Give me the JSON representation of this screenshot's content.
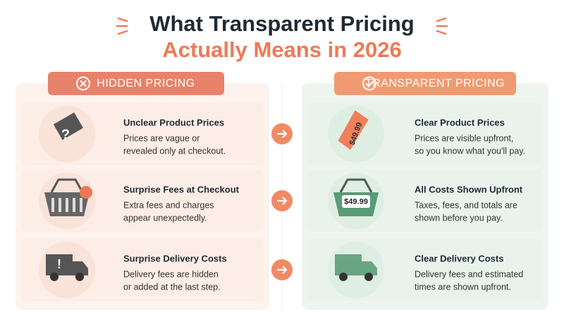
{
  "header": {
    "title_line1": "What Transparent Pricing",
    "title_line2": "Actually Means in 2026"
  },
  "columns": [
    {
      "label": "HIDDEN PRICING",
      "rows": [
        {
          "title": "Unclear Product Prices",
          "description": [
            "Prices are vague or",
            "revealed only at checkout."
          ],
          "icon_text": "?"
        },
        {
          "title": "Surprise Fees at Checkout",
          "description": [
            "Extra fees and charges",
            "appear unexpectedly."
          ]
        },
        {
          "title": "Surprise Delivery Costs",
          "description": [
            "Delivery fees are hidden",
            "or added at the last step."
          ],
          "icon_text": "!"
        }
      ]
    },
    {
      "label": "TRANSPARENT PRICING",
      "rows": [
        {
          "title": "Clear Product Prices",
          "description": [
            "Prices are visible upfront,",
            "so you know what you'll pay."
          ],
          "icon_text": "$49.99"
        },
        {
          "title": "All Costs Shown Upfront",
          "description": [
            "Taxes, fees, and totals are",
            "shown before you pay."
          ],
          "icon_text": "$49.99"
        },
        {
          "title": "Clear Delivery Costs",
          "description": [
            "Delivery fees and estimated",
            "times are shown upfront."
          ]
        }
      ]
    }
  ]
}
